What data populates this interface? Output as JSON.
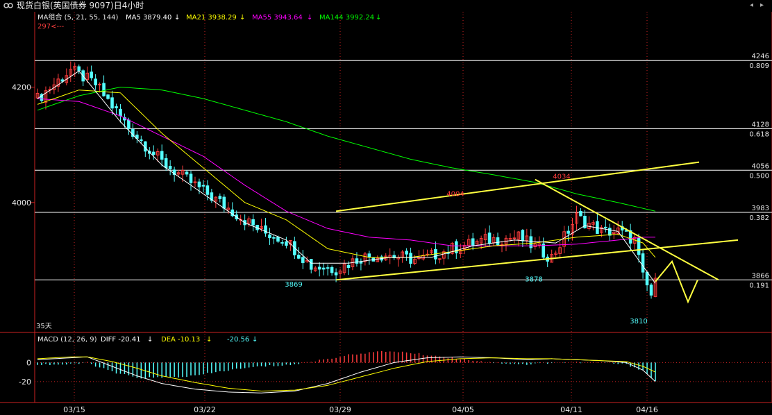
{
  "window": {
    "title": "现货白银(英国债券 9097)日4小时",
    "icon": "link-icon"
  },
  "colors": {
    "up": "#ff3c3c",
    "down": "#54ffff",
    "ma5": "#ffffff",
    "ma21": "#ffff00",
    "ma55": "#ff00ff",
    "ma144": "#00ff00",
    "channel": "#ffff40",
    "macd_pos": "#ff3c3c",
    "macd_neg": "#54ffff",
    "axis": "#cc2222",
    "grid": "#ffffff"
  },
  "legend": {
    "ma_label": "MA组合 (5, 21, 55, 144)",
    "ma5": "MA5 3879.40",
    "ma21": "MA21 3938.29",
    "ma55": "MA55 3943.64",
    "ma144": "MA144 3992.24",
    "arrow": "↓",
    "macd_label": "MACD (12, 26, 9)",
    "diff": "DIFF -20.41",
    "dea": "DEA -10.13",
    "macd": "-20.56",
    "topleft_note": "297<---",
    "span": "35天"
  },
  "chart_data": {
    "type": "candlestick",
    "price_axis": {
      "ticks": [
        4200,
        4000
      ],
      "range": [
        3775,
        4310
      ]
    },
    "macd_axis": {
      "ticks": [
        0,
        -20
      ],
      "range": [
        -42,
        20
      ]
    },
    "x_ticks": [
      "03/15",
      "03/22",
      "03/29",
      "04/05",
      "04/11",
      "04/16"
    ],
    "fib_levels": [
      {
        "price": 4246,
        "ratio": "0.809"
      },
      {
        "price": 4128,
        "ratio": "0.618"
      },
      {
        "price": 4056,
        "ratio": "0.500"
      },
      {
        "price": 3983,
        "ratio": "0.382"
      },
      {
        "price": 3866,
        "ratio": "0.191"
      }
    ],
    "annotations": [
      {
        "label": "4004",
        "price": 4004,
        "color": "up"
      },
      {
        "label": "4034",
        "price": 4034,
        "color": "up"
      },
      {
        "label": "3869",
        "price": 3869,
        "color": "down"
      },
      {
        "label": "3878",
        "price": 3878,
        "color": "down"
      },
      {
        "label": "3810",
        "price": 3810,
        "color": "down"
      }
    ],
    "candles_count": 150,
    "candles_close_anchors": [
      [
        0,
        4180
      ],
      [
        8,
        4230
      ],
      [
        14,
        4205
      ],
      [
        22,
        4130
      ],
      [
        30,
        4070
      ],
      [
        38,
        4030
      ],
      [
        46,
        3990
      ],
      [
        54,
        3950
      ],
      [
        60,
        3935
      ],
      [
        66,
        3890
      ],
      [
        72,
        3885
      ],
      [
        78,
        3905
      ],
      [
        84,
        3910
      ],
      [
        92,
        3900
      ],
      [
        100,
        3920
      ],
      [
        108,
        3935
      ],
      [
        116,
        3940
      ],
      [
        124,
        3905
      ],
      [
        130,
        3975
      ],
      [
        136,
        3950
      ],
      [
        140,
        3950
      ],
      [
        144,
        3935
      ],
      [
        146,
        3870
      ],
      [
        148,
        3840
      ],
      [
        149,
        3860
      ]
    ],
    "ma5_path": [
      [
        0,
        4180
      ],
      [
        10,
        4228
      ],
      [
        20,
        4140
      ],
      [
        30,
        4065
      ],
      [
        40,
        4015
      ],
      [
        50,
        3965
      ],
      [
        60,
        3935
      ],
      [
        66,
        3895
      ],
      [
        75,
        3895
      ],
      [
        85,
        3905
      ],
      [
        95,
        3905
      ],
      [
        105,
        3925
      ],
      [
        115,
        3935
      ],
      [
        125,
        3930
      ],
      [
        132,
        3960
      ],
      [
        140,
        3950
      ],
      [
        146,
        3890
      ],
      [
        149,
        3860
      ]
    ],
    "ma21_path": [
      [
        0,
        4170
      ],
      [
        10,
        4195
      ],
      [
        20,
        4190
      ],
      [
        30,
        4120
      ],
      [
        40,
        4060
      ],
      [
        50,
        4000
      ],
      [
        60,
        3970
      ],
      [
        70,
        3920
      ],
      [
        80,
        3905
      ],
      [
        90,
        3905
      ],
      [
        100,
        3915
      ],
      [
        110,
        3925
      ],
      [
        120,
        3930
      ],
      [
        130,
        3940
      ],
      [
        140,
        3945
      ],
      [
        146,
        3930
      ],
      [
        149,
        3905
      ]
    ],
    "ma55_path": [
      [
        0,
        4180
      ],
      [
        10,
        4175
      ],
      [
        20,
        4150
      ],
      [
        30,
        4115
      ],
      [
        40,
        4080
      ],
      [
        50,
        4030
      ],
      [
        60,
        3985
      ],
      [
        70,
        3955
      ],
      [
        80,
        3940
      ],
      [
        90,
        3935
      ],
      [
        100,
        3925
      ],
      [
        110,
        3925
      ],
      [
        120,
        3925
      ],
      [
        130,
        3928
      ],
      [
        140,
        3935
      ],
      [
        146,
        3940
      ],
      [
        149,
        3940
      ]
    ],
    "ma144_path": [
      [
        0,
        4160
      ],
      [
        10,
        4185
      ],
      [
        20,
        4200
      ],
      [
        30,
        4195
      ],
      [
        40,
        4180
      ],
      [
        50,
        4160
      ],
      [
        60,
        4140
      ],
      [
        70,
        4115
      ],
      [
        80,
        4095
      ],
      [
        90,
        4075
      ],
      [
        100,
        4060
      ],
      [
        110,
        4048
      ],
      [
        120,
        4035
      ],
      [
        130,
        4015
      ],
      [
        140,
        4000
      ],
      [
        146,
        3990
      ],
      [
        149,
        3985
      ]
    ],
    "macd_diff_path": [
      [
        0,
        3
      ],
      [
        8,
        5
      ],
      [
        12,
        6
      ],
      [
        18,
        -4
      ],
      [
        24,
        -14
      ],
      [
        30,
        -22
      ],
      [
        38,
        -28
      ],
      [
        46,
        -31
      ],
      [
        54,
        -32
      ],
      [
        62,
        -30
      ],
      [
        70,
        -22
      ],
      [
        78,
        -10
      ],
      [
        86,
        0
      ],
      [
        94,
        5
      ],
      [
        102,
        6
      ],
      [
        110,
        5
      ],
      [
        118,
        3
      ],
      [
        124,
        4
      ],
      [
        130,
        3
      ],
      [
        136,
        2
      ],
      [
        142,
        0
      ],
      [
        146,
        -8
      ],
      [
        149,
        -20
      ]
    ],
    "macd_dea_path": [
      [
        0,
        4
      ],
      [
        8,
        6
      ],
      [
        12,
        6
      ],
      [
        18,
        1
      ],
      [
        24,
        -6
      ],
      [
        30,
        -14
      ],
      [
        38,
        -21
      ],
      [
        46,
        -27
      ],
      [
        54,
        -30
      ],
      [
        62,
        -29
      ],
      [
        70,
        -24
      ],
      [
        78,
        -15
      ],
      [
        86,
        -6
      ],
      [
        94,
        1
      ],
      [
        102,
        4
      ],
      [
        110,
        5
      ],
      [
        118,
        4
      ],
      [
        124,
        4
      ],
      [
        130,
        3
      ],
      [
        136,
        2
      ],
      [
        142,
        1
      ],
      [
        146,
        -4
      ],
      [
        149,
        -10
      ]
    ],
    "channel_lines": [
      {
        "from": [
          72,
          3985
        ],
        "to": [
          142,
          4070
        ]
      },
      {
        "from": [
          72,
          3866
        ],
        "to": [
          149,
          3935
        ]
      },
      {
        "from": [
          120,
          4040
        ],
        "to": [
          149,
          3866
        ]
      }
    ],
    "forecast_zigzag": [
      [
        0,
        3863
      ],
      [
        1,
        3898
      ],
      [
        2,
        3828
      ],
      [
        3,
        3866
      ]
    ]
  },
  "panels": {
    "x_ticks_pos": [
      107,
      295,
      490,
      667,
      823,
      932
    ]
  }
}
